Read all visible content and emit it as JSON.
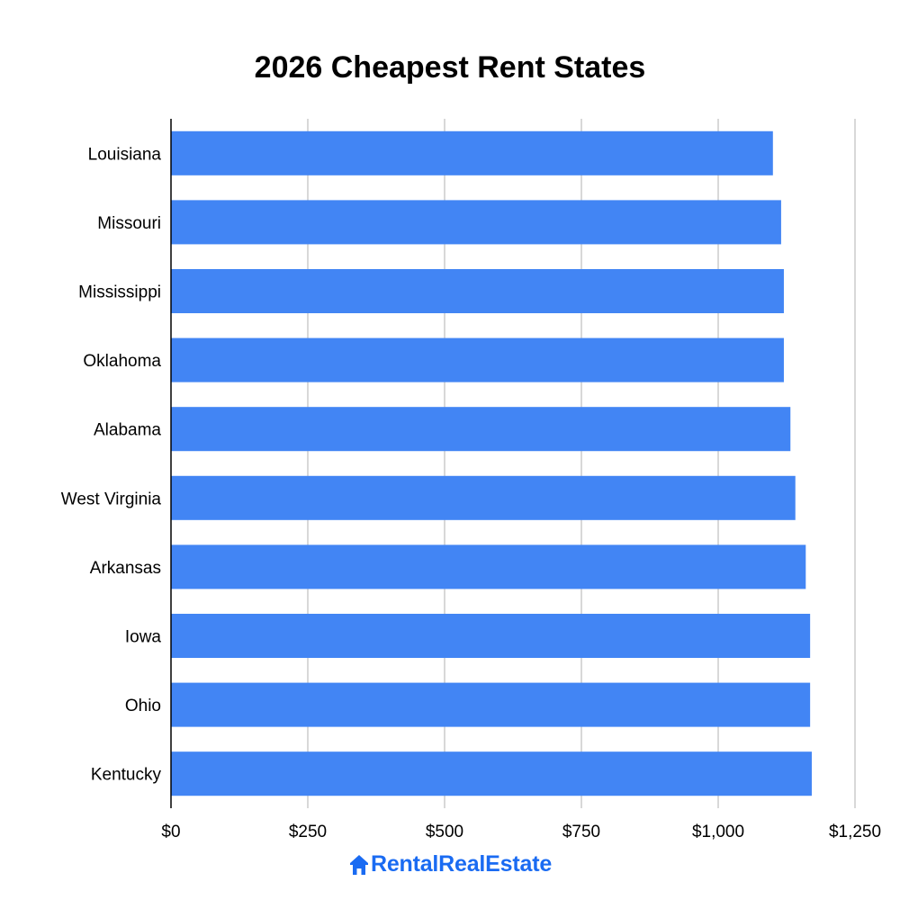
{
  "chart_data": {
    "type": "bar",
    "orientation": "horizontal",
    "title": "2026 Cheapest Rent States",
    "categories": [
      "Louisiana",
      "Missouri",
      "Mississippi",
      "Oklahoma",
      "Alabama",
      "West Virginia",
      "Arkansas",
      "Iowa",
      "Ohio",
      "Kentucky"
    ],
    "series": [
      {
        "values": [
          1100,
          1115,
          1120,
          1120,
          1132,
          1141,
          1160,
          1168,
          1168,
          1171
        ]
      }
    ],
    "xlabel": "",
    "ylabel": "",
    "xlim": [
      0,
      1250
    ],
    "x_ticks": [
      0,
      250,
      500,
      750,
      1000,
      1250
    ],
    "x_tick_labels": [
      "$0",
      "$250",
      "$500",
      "$750",
      "$1,000",
      "$1,250"
    ],
    "grid": true,
    "legend": "none",
    "colors": {
      "bar": "#4285f4",
      "grid": "#cccccc",
      "axis": "#000000",
      "text": "#000000"
    }
  },
  "brand": {
    "name": "RentalRealEstate",
    "logo_icon": "house-r-icon",
    "color": "#1a6bf2"
  }
}
